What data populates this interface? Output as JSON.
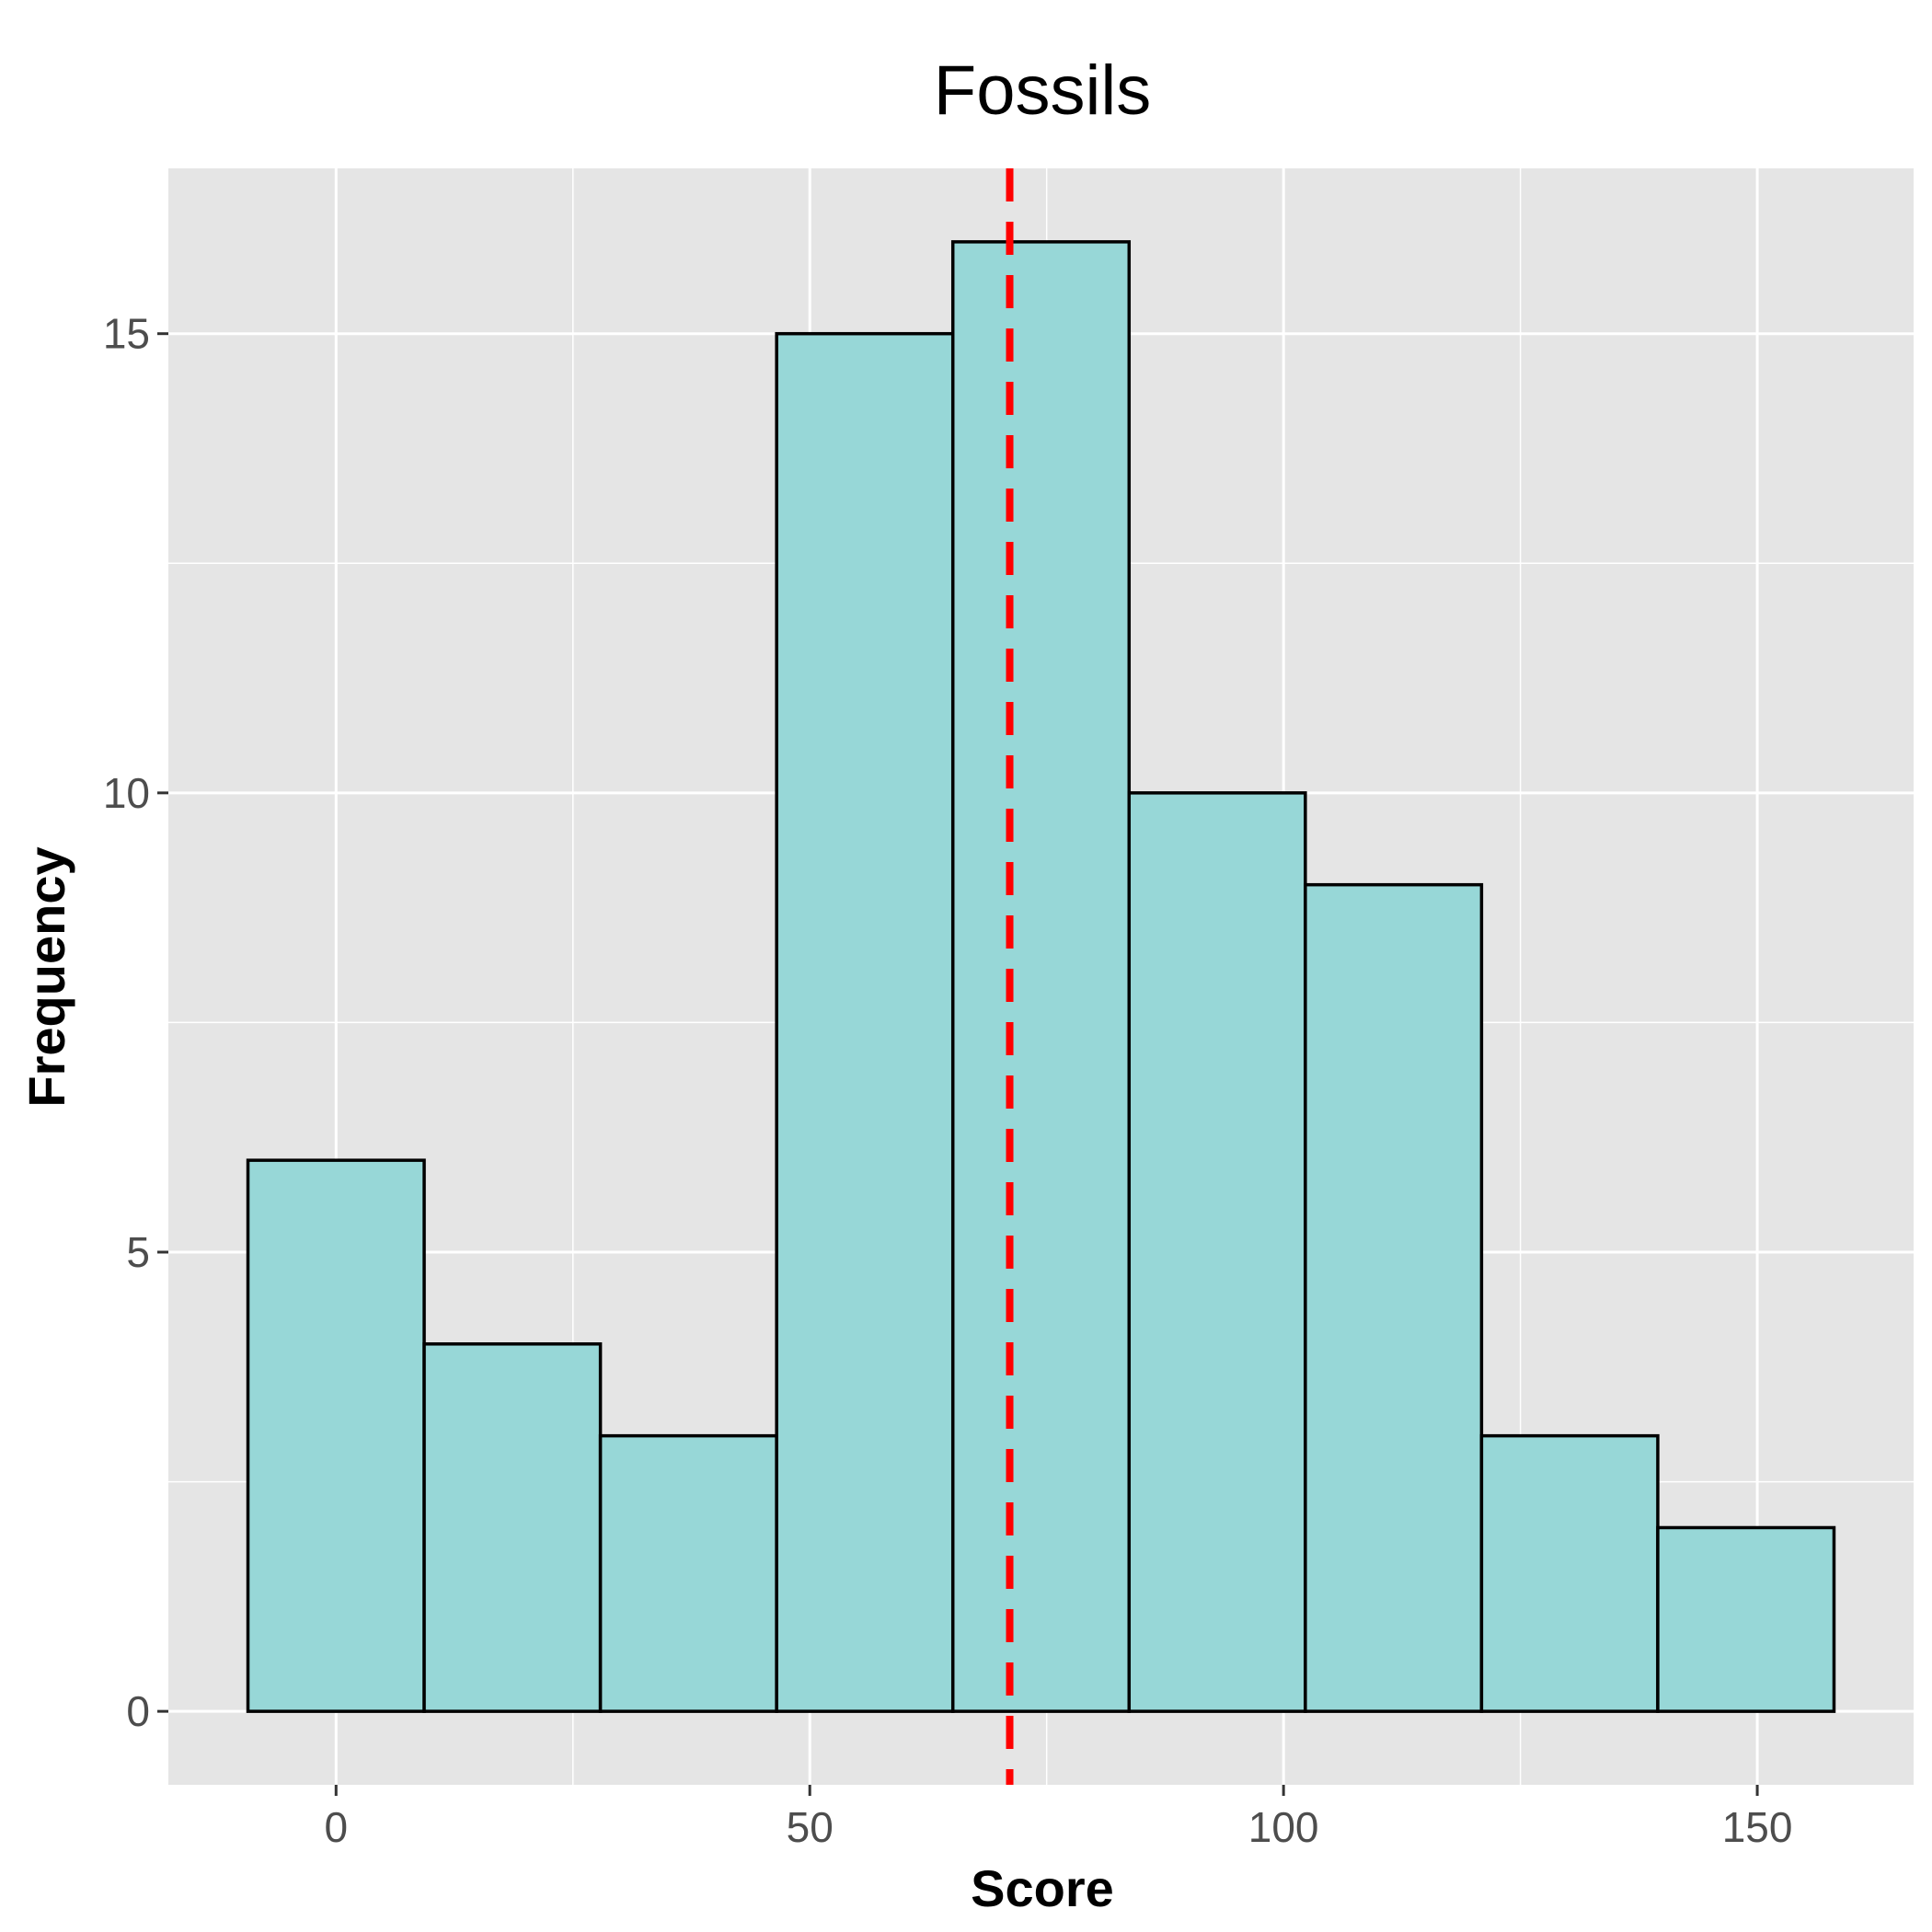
{
  "chart_data": {
    "type": "bar",
    "subtype": "histogram",
    "title": "Fossils",
    "xlabel": "Score",
    "ylabel": "Frequency",
    "bins": [
      {
        "x0": -9.3,
        "x1": 9.3,
        "count": 6
      },
      {
        "x0": 9.3,
        "x1": 27.9,
        "count": 4
      },
      {
        "x0": 27.9,
        "x1": 46.5,
        "count": 3
      },
      {
        "x0": 46.5,
        "x1": 65.1,
        "count": 15
      },
      {
        "x0": 65.1,
        "x1": 83.7,
        "count": 16
      },
      {
        "x0": 83.7,
        "x1": 102.3,
        "count": 10
      },
      {
        "x0": 102.3,
        "x1": 120.9,
        "count": 9
      },
      {
        "x0": 120.9,
        "x1": 139.5,
        "count": 3
      },
      {
        "x0": 139.5,
        "x1": 158.1,
        "count": 2
      }
    ],
    "reference_line": {
      "x": 71.1,
      "style": "dashed",
      "color": "#ff0000"
    },
    "xlim": [
      -17.7,
      166.5
    ],
    "ylim": [
      -0.8,
      16.8
    ],
    "x_ticks": [
      0,
      50,
      100,
      150
    ],
    "y_ticks": [
      0,
      5,
      10,
      15
    ],
    "x_minor": [
      25,
      75,
      125
    ],
    "y_minor": [
      2.5,
      7.5,
      12.5
    ],
    "grid": true,
    "legend": "none",
    "colors": {
      "bar_fill": "#97d7d7",
      "bar_stroke": "#000000",
      "panel_bg": "#e5e5e5",
      "grid": "#ffffff"
    }
  }
}
